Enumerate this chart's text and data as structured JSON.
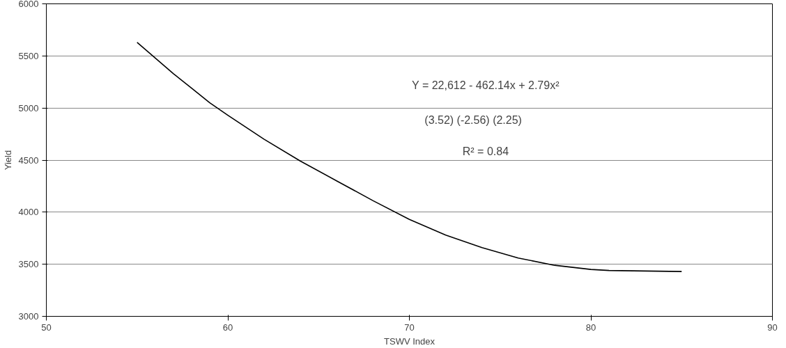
{
  "chart_data": {
    "type": "line",
    "xlabel": "TSWV Index",
    "ylabel": "Yield",
    "x": [
      55,
      56,
      57,
      58,
      59,
      60,
      62,
      64,
      66,
      68,
      70,
      72,
      74,
      76,
      78,
      80,
      81,
      83,
      85
    ],
    "series": [
      {
        "color": "#000000",
        "values": [
          5630,
          5480,
          5330,
          5190,
          5050,
          4930,
          4700,
          4490,
          4300,
          4110,
          3930,
          3780,
          3660,
          3560,
          3490,
          3450,
          3440,
          3435,
          3430
        ]
      }
    ],
    "xlim": [
      50,
      90
    ],
    "ylim": [
      3000,
      6000
    ],
    "xticks": [
      50,
      60,
      70,
      80,
      90
    ],
    "yticks": [
      3000,
      3500,
      4000,
      4500,
      5000,
      5500,
      6000
    ],
    "grid": "y",
    "marker": "none",
    "line_style": "solid",
    "annotations": [
      "Y = 22,612 - 462.14x + 2.79x²",
      "(3.52)     (-2.56)     (2.25)",
      "R² = 0.84"
    ]
  }
}
